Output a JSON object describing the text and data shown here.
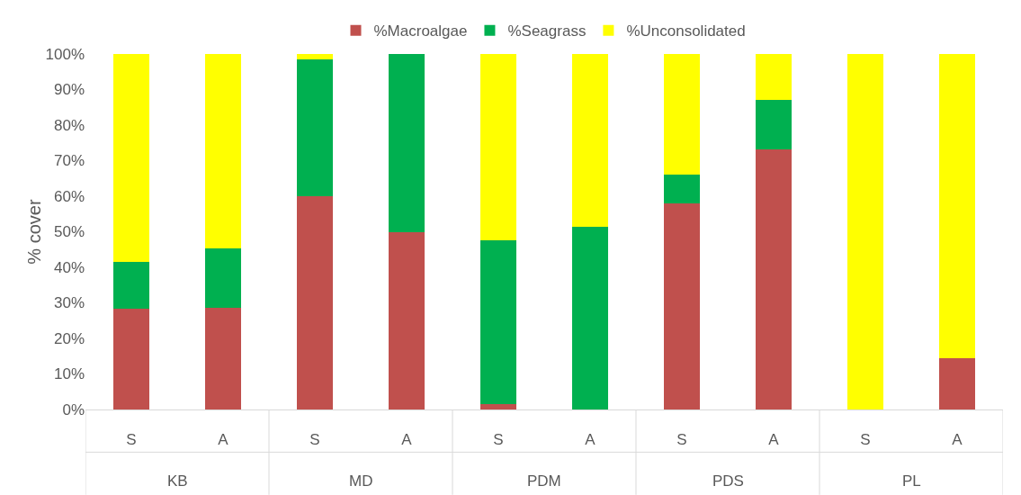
{
  "chart_data": {
    "type": "bar",
    "stacked": true,
    "ylabel": "% cover",
    "categories": [
      "S",
      "A",
      "S",
      "A",
      "S",
      "A",
      "S",
      "A",
      "S",
      "A"
    ],
    "series": [
      {
        "name": "%Macroalgae",
        "color": "#c0504d",
        "values": [
          28.4,
          28.7,
          60,
          50,
          1.6,
          0,
          58.1,
          73.1,
          0,
          14.5
        ]
      },
      {
        "name": "%Seagrass",
        "color": "#00b050",
        "values": [
          13.2,
          16.5,
          38.4,
          50,
          45.9,
          51.4,
          8,
          14,
          0,
          0
        ]
      },
      {
        "name": "%Unconsolidated",
        "color": "#ffff00",
        "values": [
          58.4,
          54.8,
          1.6,
          0,
          52.5,
          48.6,
          33.9,
          12.9,
          100,
          85.5
        ]
      }
    ],
    "annotations": [
      "KB",
      "MD",
      "PDM",
      "PDS",
      "PL"
    ],
    "ylim": [
      0,
      100
    ],
    "yticks": [
      {
        "value": 0,
        "label": "0%"
      },
      {
        "value": 10,
        "label": "10%"
      },
      {
        "value": 20,
        "label": "20%"
      },
      {
        "value": 30,
        "label": "30%"
      },
      {
        "value": 40,
        "label": "40%"
      },
      {
        "value": 50,
        "label": "50%"
      },
      {
        "value": 60,
        "label": "60%"
      },
      {
        "value": 70,
        "label": "70%"
      },
      {
        "value": 80,
        "label": "80%"
      },
      {
        "value": 90,
        "label": "90%"
      },
      {
        "value": 100,
        "label": "100%"
      }
    ],
    "grid": false,
    "legend": "top"
  }
}
